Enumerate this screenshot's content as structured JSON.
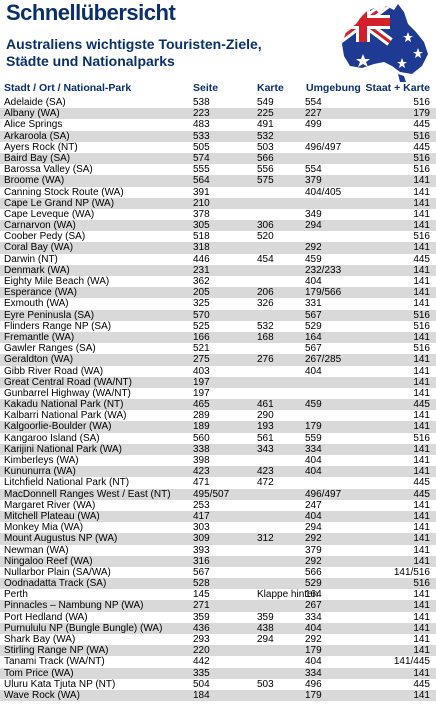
{
  "header": {
    "title": "Schnellübersicht",
    "subtitle_line1": "Australiens wichtigste Touristen-Ziele,",
    "subtitle_line2": "Städte und Nationalparks"
  },
  "colors": {
    "title": "#0a2f6b",
    "stripe": "#d9d9d9",
    "flag_blue": "#1f3a93",
    "flag_red": "#d21f2b"
  },
  "columns": {
    "name": "Stadt / Ort / National-Park",
    "seite": "Seite",
    "karte": "Karte",
    "umgebung": "Umgebung",
    "staat": "Staat + Karte"
  },
  "rows": [
    [
      "Adelaide (SA)",
      "538",
      "549",
      "554",
      "516"
    ],
    [
      "Albany (WA)",
      "223",
      "225",
      "227",
      "179"
    ],
    [
      "Alice Springs",
      "483",
      "491",
      "499",
      "445"
    ],
    [
      "Arkaroola (SA)",
      "533",
      "532",
      "",
      "516"
    ],
    [
      "Ayers Rock (NT)",
      "505",
      "503",
      "496/497",
      "445"
    ],
    [
      "Baird Bay (SA)",
      "574",
      "566",
      "",
      "516"
    ],
    [
      "Barossa Valley (SA)",
      "555",
      "556",
      "554",
      "516"
    ],
    [
      "Broome (WA)",
      "564",
      "575",
      "379",
      "141"
    ],
    [
      "Canning Stock Route (WA)",
      "391",
      "",
      "404/405",
      "141"
    ],
    [
      "Cape Le Grand NP (WA)",
      "210",
      "",
      "",
      "141"
    ],
    [
      "Cape Leveque (WA)",
      "378",
      "",
      "349",
      "141"
    ],
    [
      "Carnarvon (WA)",
      "305",
      "306",
      "294",
      "141"
    ],
    [
      "Coober Pedy (SA)",
      "518",
      "520",
      "",
      "516"
    ],
    [
      "Coral Bay (WA)",
      "318",
      "",
      "292",
      "141"
    ],
    [
      "Darwin (NT)",
      "446",
      "454",
      "459",
      "445"
    ],
    [
      "Denmark (WA)",
      "231",
      "",
      "232/233",
      "141"
    ],
    [
      "Eighty Mile Beach (WA)",
      "362",
      "",
      "404",
      "141"
    ],
    [
      "Esperance (WA)",
      "205",
      "206",
      "179/566",
      "141"
    ],
    [
      "Exmouth (WA)",
      "325",
      "326",
      "331",
      "141"
    ],
    [
      "Eyre Peninusla (SA)",
      "570",
      "",
      "567",
      "516"
    ],
    [
      "Flinders Range NP (SA)",
      "525",
      "532",
      "529",
      "516"
    ],
    [
      "Fremantle (WA)",
      "166",
      "168",
      "164",
      "141"
    ],
    [
      "Gawler Ranges (SA)",
      "521",
      "",
      "567",
      "516"
    ],
    [
      "Geraldton (WA)",
      "275",
      "276",
      "267/285",
      "141"
    ],
    [
      "Gibb River Road (WA)",
      "403",
      "",
      "404",
      "141"
    ],
    [
      "Great Central Road (WA/NT)",
      "197",
      "",
      "",
      "141"
    ],
    [
      "Gunbarrel Highway (WA/NT)",
      "197",
      "",
      "",
      "141"
    ],
    [
      "Kakadu National Park (NT)",
      "465",
      "461",
      "459",
      "445"
    ],
    [
      "Kalbarri National Park (WA)",
      "289",
      "290",
      "",
      "141"
    ],
    [
      "Kalgoorlie-Boulder (WA)",
      "189",
      "193",
      "179",
      "141"
    ],
    [
      "Kangaroo Island (SA)",
      "560",
      "561",
      "559",
      "516"
    ],
    [
      "Karijini National Park (WA)",
      "338",
      "343",
      "334",
      "141"
    ],
    [
      "Kimberleys (WA)",
      "398",
      "",
      "404",
      "141"
    ],
    [
      "Kununurra (WA)",
      "423",
      "423",
      "404",
      "141"
    ],
    [
      "Litchfield National Park (NT)",
      "471",
      "472",
      "",
      "445"
    ],
    [
      "MacDonnell Ranges West / East (NT)",
      "495/507",
      "",
      "496/497",
      "445"
    ],
    [
      "Margaret River (WA)",
      "253",
      "",
      "247",
      "141"
    ],
    [
      "Mitchell Plateau (WA)",
      "417",
      "",
      "404",
      "141"
    ],
    [
      "Monkey Mia (WA)",
      "303",
      "",
      "294",
      "141"
    ],
    [
      "Mount Augustus NP (WA)",
      "309",
      "312",
      "292",
      "141"
    ],
    [
      "Newman (WA)",
      "393",
      "",
      "379",
      "141"
    ],
    [
      "Ningaloo Reef (WA)",
      "316",
      "",
      "292",
      "141"
    ],
    [
      "Nullarbor Plain (SA/WA)",
      "567",
      "",
      "566",
      "141/516"
    ],
    [
      "Oodnadatta Track (SA)",
      "528",
      "",
      "529",
      "516"
    ],
    [
      "Perth",
      "145",
      "Klappe hinten",
      "164",
      "141"
    ],
    [
      "Pinnacles – Nambung NP (WA)",
      "271",
      "",
      "267",
      "141"
    ],
    [
      "Port Hedland (WA)",
      "359",
      "359",
      "334",
      "141"
    ],
    [
      "Purnululu NP (Bungle Bungle) (WA)",
      "436",
      "438",
      "404",
      "141"
    ],
    [
      "Shark Bay (WA)",
      "293",
      "294",
      "292",
      "141"
    ],
    [
      "Stirling Range NP (WA)",
      "220",
      "",
      "179",
      "141"
    ],
    [
      "Tanami Track (WA/NT)",
      "442",
      "",
      "404",
      "141/445"
    ],
    [
      "Tom Price (WA)",
      "335",
      "",
      "334",
      "141"
    ],
    [
      "Uluru Kata Tjuta NP (NT)",
      "504",
      "503",
      "496",
      "445"
    ],
    [
      "Wave Rock (WA)",
      "184",
      "",
      "179",
      "141"
    ]
  ]
}
